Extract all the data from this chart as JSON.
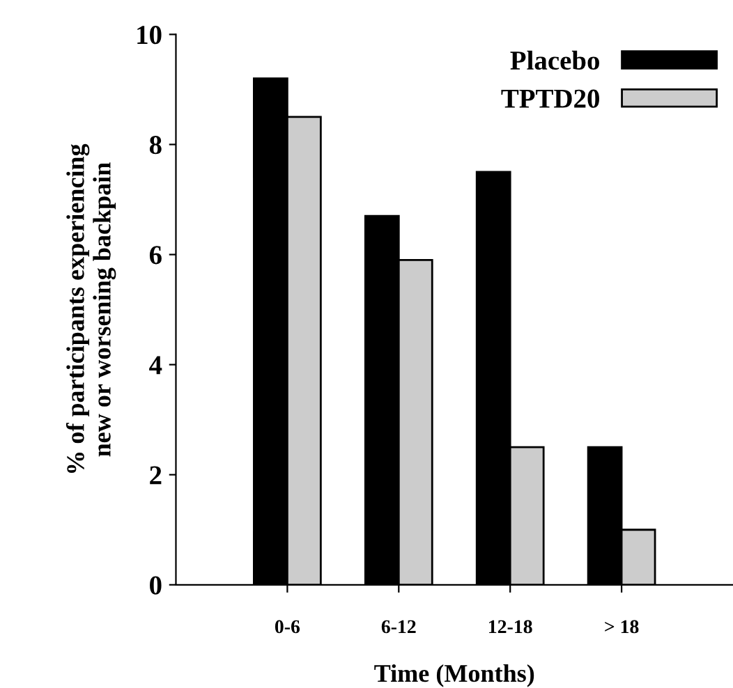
{
  "chart_data": {
    "type": "bar",
    "xlabel": "Time (Months)",
    "ylabel": "% of participants experiencing\nnew or worsening backpain",
    "categories": [
      "0-6",
      "6-12",
      "12-18",
      "> 18"
    ],
    "series": [
      {
        "name": "Placebo",
        "color": "#000000",
        "values": [
          9.2,
          6.7,
          7.5,
          2.5
        ]
      },
      {
        "name": "TPTD20",
        "color": "#cccccc",
        "values": [
          8.5,
          5.9,
          2.5,
          1.0
        ]
      }
    ],
    "ylim": [
      0,
      10
    ],
    "yticks": [
      0,
      2,
      4,
      6,
      8,
      10
    ],
    "grid": false,
    "legend": "top right"
  }
}
